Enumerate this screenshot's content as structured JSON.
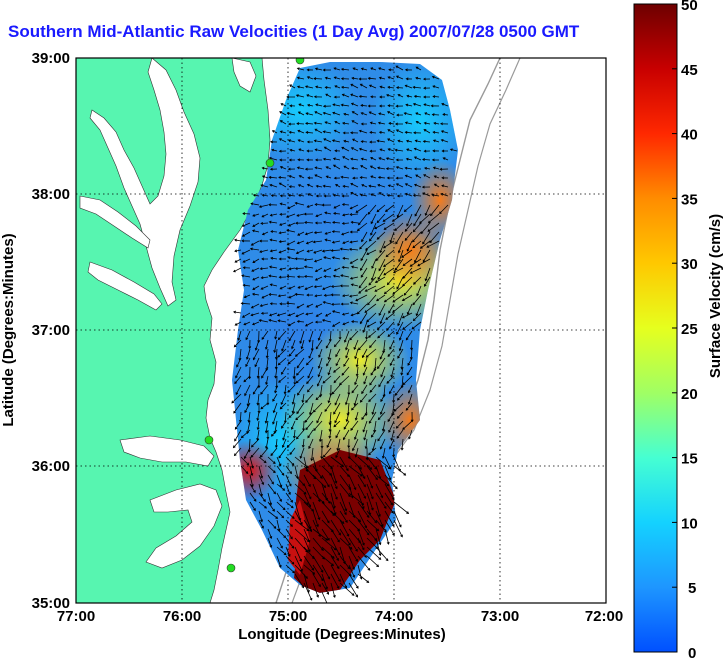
{
  "title": "Southern Mid-Atlantic Raw Velocities (1 Day Avg) 2007/07/28 0500 GMT",
  "map": {
    "xlabel": "Longitude (Degrees:Minutes)",
    "ylabel": "Latitude (Degrees:Minutes)",
    "xticks": [
      "77:00",
      "76:00",
      "75:00",
      "74:00",
      "73:00",
      "72:00"
    ],
    "yticks": [
      "39:00",
      "38:00",
      "37:00",
      "36:00",
      "35:00"
    ],
    "grid": "dotted",
    "land_color": "#57f5b0"
  },
  "colorbar": {
    "label": "Surface Velocity (cm/s)",
    "ticks": [
      "50",
      "45",
      "40",
      "35",
      "30",
      "25",
      "20",
      "15",
      "10",
      "5",
      "0"
    ],
    "min": 0,
    "max": 50
  },
  "colors": {
    "title": "#1a1aff",
    "land": "#57f5b0",
    "station": "#22dd22"
  }
}
